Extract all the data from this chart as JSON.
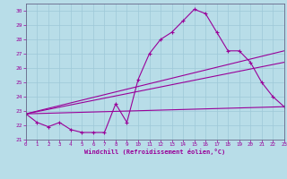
{
  "xlabel": "Windchill (Refroidissement éolien,°C)",
  "xlim": [
    0,
    23
  ],
  "ylim": [
    21,
    30
  ],
  "yticks": [
    21,
    22,
    23,
    24,
    25,
    26,
    27,
    28,
    29,
    30
  ],
  "xticks": [
    0,
    1,
    2,
    3,
    4,
    5,
    6,
    7,
    8,
    9,
    10,
    11,
    12,
    13,
    14,
    15,
    16,
    17,
    18,
    19,
    20,
    21,
    22,
    23
  ],
  "bg_color": "#b8dde8",
  "line_color": "#990099",
  "grid_color": "#9ec8d8",
  "line1_x": [
    0,
    1,
    2,
    3,
    4,
    5,
    6,
    7,
    8,
    9,
    10,
    11,
    12,
    13,
    14,
    15,
    16,
    17,
    18,
    19,
    20,
    21,
    22,
    23
  ],
  "line1_y": [
    22.8,
    22.2,
    21.9,
    22.2,
    21.7,
    21.5,
    21.5,
    21.5,
    23.5,
    22.2,
    25.2,
    27.0,
    28.0,
    28.5,
    29.3,
    30.1,
    29.8,
    28.5,
    27.2,
    27.2,
    26.4,
    25.0,
    24.0,
    23.3
  ],
  "line2_x": [
    0,
    23
  ],
  "line2_y": [
    22.8,
    23.3
  ],
  "line3_x": [
    0,
    23
  ],
  "line3_y": [
    22.8,
    26.4
  ],
  "line4_x": [
    0,
    23
  ],
  "line4_y": [
    22.8,
    27.2
  ]
}
